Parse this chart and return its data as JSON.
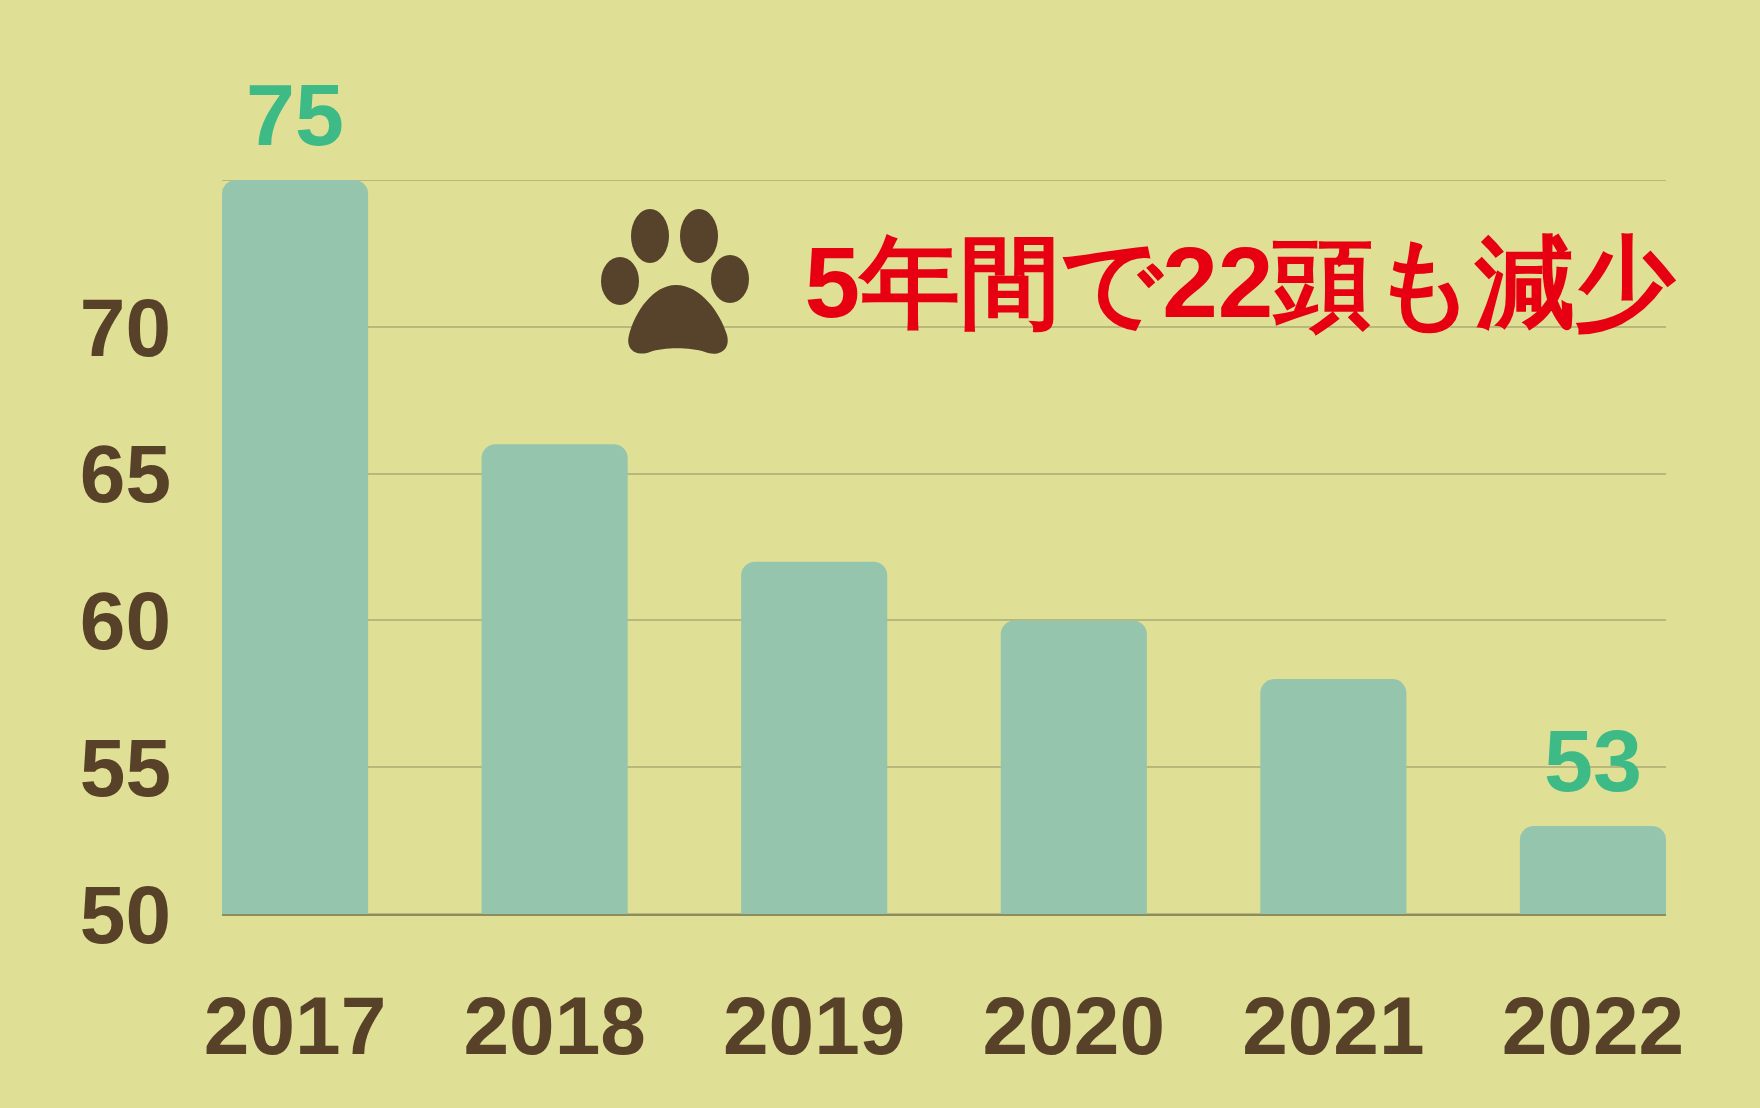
{
  "chart_data": {
    "type": "bar",
    "title": "5年間で22頭も減少",
    "categories": [
      "2017",
      "2018",
      "2019",
      "2020",
      "2021",
      "2022"
    ],
    "values": [
      75,
      66,
      62,
      60,
      58,
      53
    ],
    "color": "#96c5ae",
    "value_labels": [
      "75",
      null,
      null,
      null,
      null,
      "53"
    ],
    "ylim": [
      50,
      75
    ],
    "yticks": [
      50,
      55,
      60,
      65,
      70,
      {
        "value": 75,
        "label": null
      }
    ],
    "grid": "y"
  }
}
